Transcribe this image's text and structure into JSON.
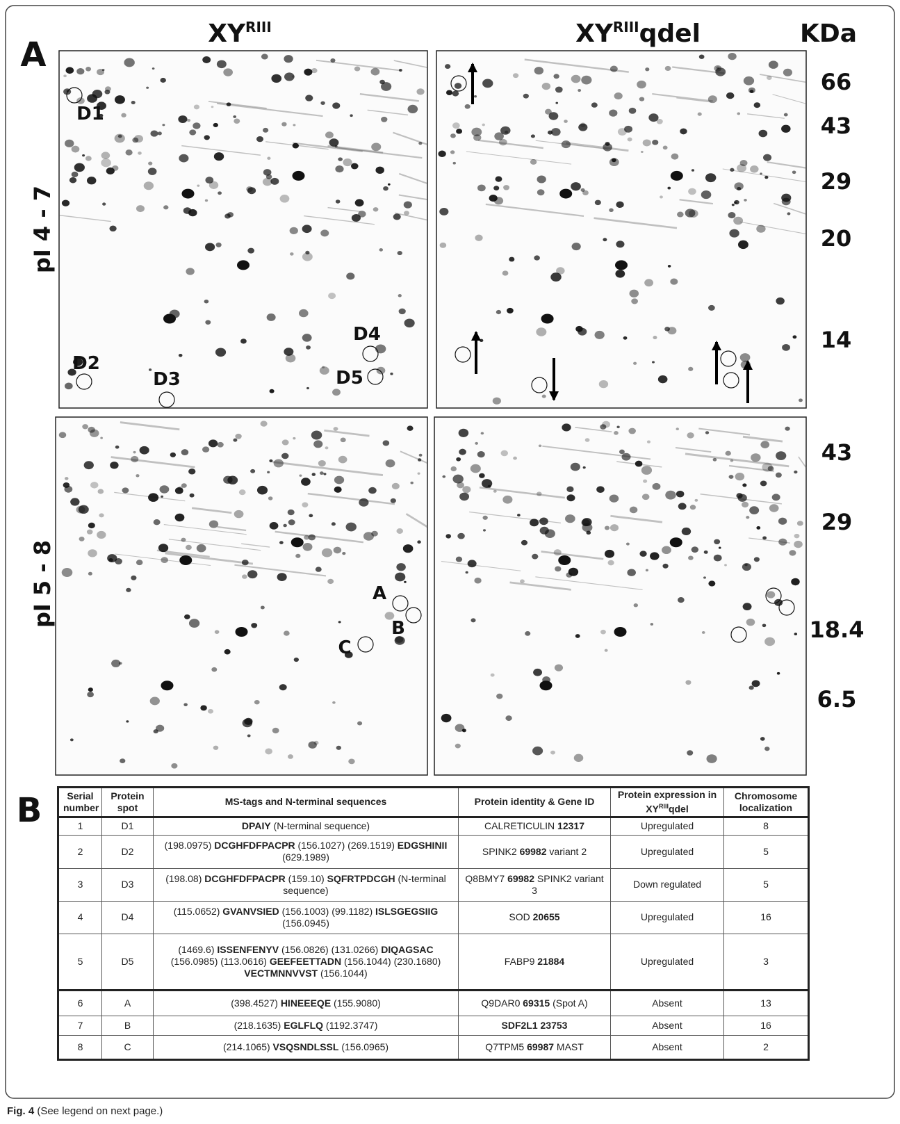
{
  "panel_a": {
    "label": "A",
    "left_title": {
      "base": "XY",
      "sup": "RIII"
    },
    "right_title": {
      "base": "XY",
      "sup": "RIII",
      "suffix": "qdel"
    },
    "kda_label": "KDa",
    "row_labels": [
      "pI 4 - 7",
      "pI 5 - 8"
    ],
    "mw_top": [
      "66",
      "43",
      "29",
      "20",
      "14"
    ],
    "mw_bottom": [
      "43",
      "29",
      "18.4",
      "6.5"
    ],
    "spot_labels": [
      "D1",
      "D2",
      "D3",
      "D4",
      "D5",
      "A",
      "B",
      "C"
    ]
  },
  "panel_b": {
    "label": "B",
    "table": {
      "headers": [
        "Serial number",
        "Protein spot",
        "MS-tags and N-terminal sequences",
        "Protein identity & Gene ID",
        [
          {
            "text": "Protein expression in XY"
          },
          {
            "text": "RIII",
            "sup": true
          },
          {
            "text": "qdel"
          }
        ],
        "Chromosome localization"
      ],
      "rows": [
        [
          "1",
          "D1",
          [
            {
              "text": "DPAIY",
              "bold": true
            },
            {
              "text": " (N-terminal sequence)"
            }
          ],
          [
            {
              "text": "CALRETICULIN "
            },
            {
              "text": "12317",
              "bold": true
            }
          ],
          "Upregulated",
          "8"
        ],
        [
          "2",
          "D2",
          [
            {
              "text": "(198.0975) "
            },
            {
              "text": "DCGHFDFPACPR",
              "bold": true
            },
            {
              "text": " (156.1027) (269.1519) "
            },
            {
              "text": "EDGSHINII",
              "bold": true
            },
            {
              "text": " (629.1989)"
            }
          ],
          [
            {
              "text": "SPINK2 "
            },
            {
              "text": "69982",
              "bold": true
            },
            {
              "text": " variant 2"
            }
          ],
          "Upregulated",
          "5"
        ],
        [
          "3",
          "D3",
          [
            {
              "text": "(198.08) "
            },
            {
              "text": "DCGHFDFPACPR",
              "bold": true
            },
            {
              "text": " (159.10) "
            },
            {
              "text": "SQFRTPDCGH",
              "bold": true
            },
            {
              "text": " (N-terminal sequence)"
            }
          ],
          [
            {
              "text": "Q8BMY7 "
            },
            {
              "text": "69982",
              "bold": true
            },
            {
              "text": " SPINK2 variant 3"
            }
          ],
          "Down regulated",
          "5"
        ],
        [
          "4",
          "D4",
          [
            {
              "text": "(115.0652) "
            },
            {
              "text": "GVANVSIED",
              "bold": true
            },
            {
              "text": " (156.1003) (99.1182) "
            },
            {
              "text": "ISLSGEGSIIG",
              "bold": true
            },
            {
              "text": " (156.0945)"
            }
          ],
          [
            {
              "text": "SOD "
            },
            {
              "text": "20655",
              "bold": true
            }
          ],
          "Upregulated",
          "16"
        ],
        [
          "5",
          "D5",
          [
            {
              "text": "(1469.6) "
            },
            {
              "text": "ISSENFENYV",
              "bold": true
            },
            {
              "text": " (156.0826) (131.0266) "
            },
            {
              "text": "DIQAGSAC",
              "bold": true
            },
            {
              "text": " (156.0985) (113.0616) "
            },
            {
              "text": "GEEFEETTADN",
              "bold": true
            },
            {
              "text": " (156.1044) (230.1680) "
            },
            {
              "text": "VECTMNNVVST",
              "bold": true
            },
            {
              "text": " (156.1044)"
            }
          ],
          [
            {
              "text": "FABP9 "
            },
            {
              "text": "21884",
              "bold": true
            }
          ],
          "Upregulated",
          "3"
        ],
        [
          "6",
          "A",
          [
            {
              "text": "(398.4527) "
            },
            {
              "text": "HINEEEQE",
              "bold": true
            },
            {
              "text": " (155.9080)"
            }
          ],
          [
            {
              "text": "Q9DAR0 "
            },
            {
              "text": "69315",
              "bold": true
            },
            {
              "text": " (Spot A)"
            }
          ],
          "Absent",
          "13"
        ],
        [
          "7",
          "B",
          [
            {
              "text": "(218.1635) "
            },
            {
              "text": "EGLFLQ",
              "bold": true
            },
            {
              "text": " (1192.3747)"
            }
          ],
          [
            {
              "text": "SDF2L1  23753",
              "bold": true
            }
          ],
          "Absent",
          "16"
        ],
        [
          "8",
          "C",
          [
            {
              "text": "(214.1065) "
            },
            {
              "text": "VSQSNDLSSL",
              "bold": true
            },
            {
              "text": " (156.0965)"
            }
          ],
          [
            {
              "text": "Q7TPM5 "
            },
            {
              "text": "69987",
              "bold": true
            },
            {
              "text": " MAST"
            }
          ],
          "Absent",
          "2"
        ]
      ]
    }
  },
  "caption": {
    "label": "Fig. 4",
    "text": " (See legend on next page.)"
  }
}
